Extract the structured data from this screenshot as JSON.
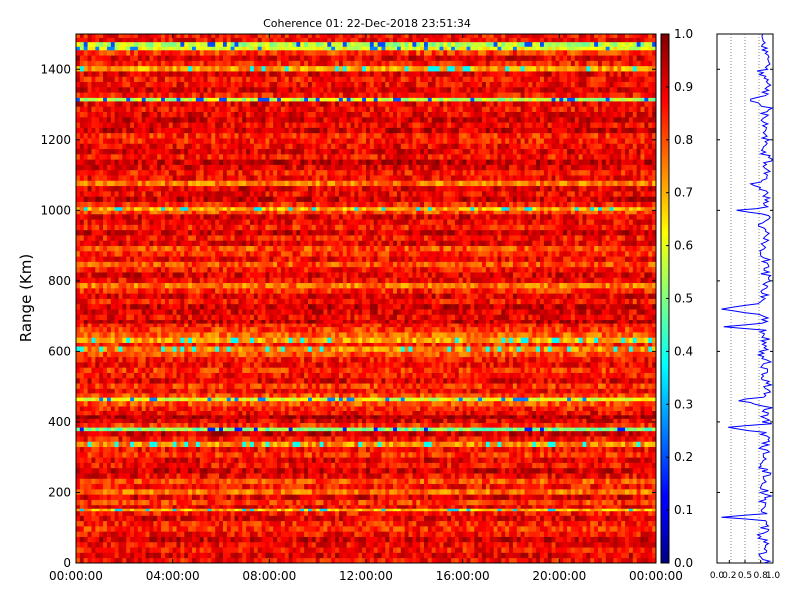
{
  "chart_data": [
    {
      "type": "heatmap",
      "title": "Coherence 01: 22-Dec-2018 23:51:34",
      "xlabel": "",
      "ylabel": "Range (Km)",
      "x_tick_labels": [
        "00:00:00",
        "04:00:00",
        "08:00:00",
        "12:00:00",
        "16:00:00",
        "20:00:00",
        "00:00:00"
      ],
      "x_range_hours": [
        0,
        24
      ],
      "ylim": [
        0,
        1500
      ],
      "y_ticks": [
        0,
        200,
        400,
        600,
        800,
        1000,
        1200,
        1400
      ],
      "colormap": "jet",
      "clim": [
        0.0,
        1.0
      ],
      "colorbar_ticks": [
        "0.0",
        "0.1",
        "0.2",
        "0.3",
        "0.4",
        "0.5",
        "0.6",
        "0.7",
        "0.8",
        "0.9",
        "1.0"
      ],
      "n_time_bins": 150,
      "range_bins": [
        [
          0,
          0.87
        ],
        [
          15,
          0.9
        ],
        [
          30,
          0.86
        ],
        [
          45,
          0.88
        ],
        [
          60,
          0.92
        ],
        [
          75,
          0.87
        ],
        [
          90,
          0.83
        ],
        [
          105,
          0.85
        ],
        [
          120,
          0.9
        ],
        [
          135,
          0.86
        ],
        [
          148,
          0.68
        ],
        [
          155,
          0.88
        ],
        [
          165,
          0.82
        ],
        [
          180,
          0.9
        ],
        [
          195,
          0.77
        ],
        [
          210,
          0.86
        ],
        [
          225,
          0.8
        ],
        [
          240,
          0.88
        ],
        [
          255,
          0.92
        ],
        [
          270,
          0.86
        ],
        [
          285,
          0.9
        ],
        [
          300,
          0.83
        ],
        [
          315,
          0.87
        ],
        [
          330,
          0.74
        ],
        [
          345,
          0.86
        ],
        [
          360,
          0.92
        ],
        [
          375,
          0.5
        ],
        [
          385,
          0.83
        ],
        [
          398,
          0.9
        ],
        [
          410,
          0.95
        ],
        [
          420,
          0.88
        ],
        [
          432,
          0.85
        ],
        [
          445,
          0.8
        ],
        [
          460,
          0.6
        ],
        [
          470,
          0.8
        ],
        [
          482,
          0.87
        ],
        [
          495,
          0.82
        ],
        [
          510,
          0.9
        ],
        [
          525,
          0.86
        ],
        [
          540,
          0.83
        ],
        [
          555,
          0.88
        ],
        [
          570,
          0.86
        ],
        [
          585,
          0.8
        ],
        [
          600,
          0.74
        ],
        [
          615,
          0.84
        ],
        [
          625,
          0.72
        ],
        [
          640,
          0.78
        ],
        [
          655,
          0.82
        ],
        [
          670,
          0.85
        ],
        [
          680,
          0.93
        ],
        [
          690,
          0.88
        ],
        [
          705,
          0.9
        ],
        [
          720,
          0.92
        ],
        [
          735,
          0.86
        ],
        [
          750,
          0.9
        ],
        [
          765,
          0.84
        ],
        [
          780,
          0.76
        ],
        [
          795,
          0.88
        ],
        [
          810,
          0.9
        ],
        [
          825,
          0.86
        ],
        [
          840,
          0.8
        ],
        [
          855,
          0.88
        ],
        [
          870,
          0.84
        ],
        [
          885,
          0.8
        ],
        [
          900,
          0.9
        ],
        [
          915,
          0.86
        ],
        [
          930,
          0.92
        ],
        [
          945,
          0.85
        ],
        [
          960,
          0.88
        ],
        [
          975,
          0.9
        ],
        [
          990,
          0.8
        ],
        [
          1000,
          0.7
        ],
        [
          1010,
          0.85
        ],
        [
          1025,
          0.92
        ],
        [
          1040,
          0.88
        ],
        [
          1055,
          0.9
        ],
        [
          1070,
          0.76
        ],
        [
          1085,
          0.88
        ],
        [
          1100,
          0.86
        ],
        [
          1115,
          0.9
        ],
        [
          1130,
          0.93
        ],
        [
          1145,
          0.86
        ],
        [
          1160,
          0.9
        ],
        [
          1175,
          0.88
        ],
        [
          1190,
          0.85
        ],
        [
          1205,
          0.84
        ],
        [
          1220,
          0.92
        ],
        [
          1235,
          0.88
        ],
        [
          1250,
          0.91
        ],
        [
          1265,
          0.89
        ],
        [
          1280,
          0.87
        ],
        [
          1295,
          0.9
        ],
        [
          1310,
          0.55
        ],
        [
          1320,
          0.86
        ],
        [
          1335,
          0.9
        ],
        [
          1350,
          0.88
        ],
        [
          1365,
          0.86
        ],
        [
          1380,
          0.9
        ],
        [
          1395,
          0.72
        ],
        [
          1410,
          0.85
        ],
        [
          1425,
          0.9
        ],
        [
          1440,
          0.82
        ],
        [
          1455,
          0.6
        ],
        [
          1465,
          0.55
        ],
        [
          1478,
          0.88
        ],
        [
          1490,
          0.86
        ]
      ]
    },
    {
      "type": "line",
      "title": "",
      "xlabel": "",
      "ylabel": "",
      "x_tick_labels": [
        "0.0",
        "0.2",
        "0.5",
        "0.8",
        "1.0"
      ],
      "xlim": [
        0.0,
        1.0
      ],
      "ylim": [
        0,
        1500
      ],
      "grid": "vertical dotted lines",
      "series_color": "#0000ff",
      "series": [
        {
          "values_range_km": [
            0,
            25,
            50,
            75,
            100,
            120,
            130,
            140,
            150,
            160,
            175,
            190,
            200,
            210,
            230,
            250,
            270,
            290,
            310,
            330,
            350,
            370,
            378,
            385,
            395,
            405,
            420,
            440,
            455,
            462,
            470,
            490,
            510,
            530,
            550,
            570,
            590,
            610,
            630,
            660,
            670,
            680,
            700,
            720,
            740,
            760,
            775,
            800,
            820,
            840,
            860,
            880,
            900,
            915,
            930,
            950,
            970,
            990,
            1000,
            1010,
            1030,
            1050,
            1075,
            1090,
            1110,
            1130,
            1150,
            1170,
            1190,
            1210,
            1230,
            1250,
            1270,
            1290,
            1310,
            1330,
            1350,
            1370,
            1395,
            1410,
            1430,
            1450,
            1470,
            1490
          ],
          "values_coherence": [
            0.88,
            0.82,
            0.9,
            0.8,
            0.86,
            0.9,
            0.08,
            0.85,
            0.7,
            0.88,
            0.78,
            0.9,
            0.86,
            0.84,
            0.88,
            0.9,
            0.8,
            0.87,
            0.9,
            0.82,
            0.88,
            0.86,
            0.45,
            0.2,
            0.9,
            0.88,
            0.85,
            0.9,
            0.6,
            0.3,
            0.86,
            0.88,
            0.9,
            0.82,
            0.86,
            0.88,
            0.8,
            0.9,
            0.86,
            0.85,
            0.12,
            0.88,
            0.9,
            0.08,
            0.86,
            0.88,
            0.8,
            0.9,
            0.86,
            0.88,
            0.9,
            0.82,
            0.86,
            0.88,
            0.9,
            0.8,
            0.86,
            0.88,
            0.35,
            0.9,
            0.86,
            0.88,
            0.65,
            0.9,
            0.86,
            0.88,
            0.9,
            0.84,
            0.88,
            0.86,
            0.9,
            0.88,
            0.86,
            0.9,
            0.6,
            0.88,
            0.86,
            0.9,
            0.8,
            0.88,
            0.86,
            0.9,
            0.85,
            0.88
          ]
        }
      ]
    }
  ]
}
